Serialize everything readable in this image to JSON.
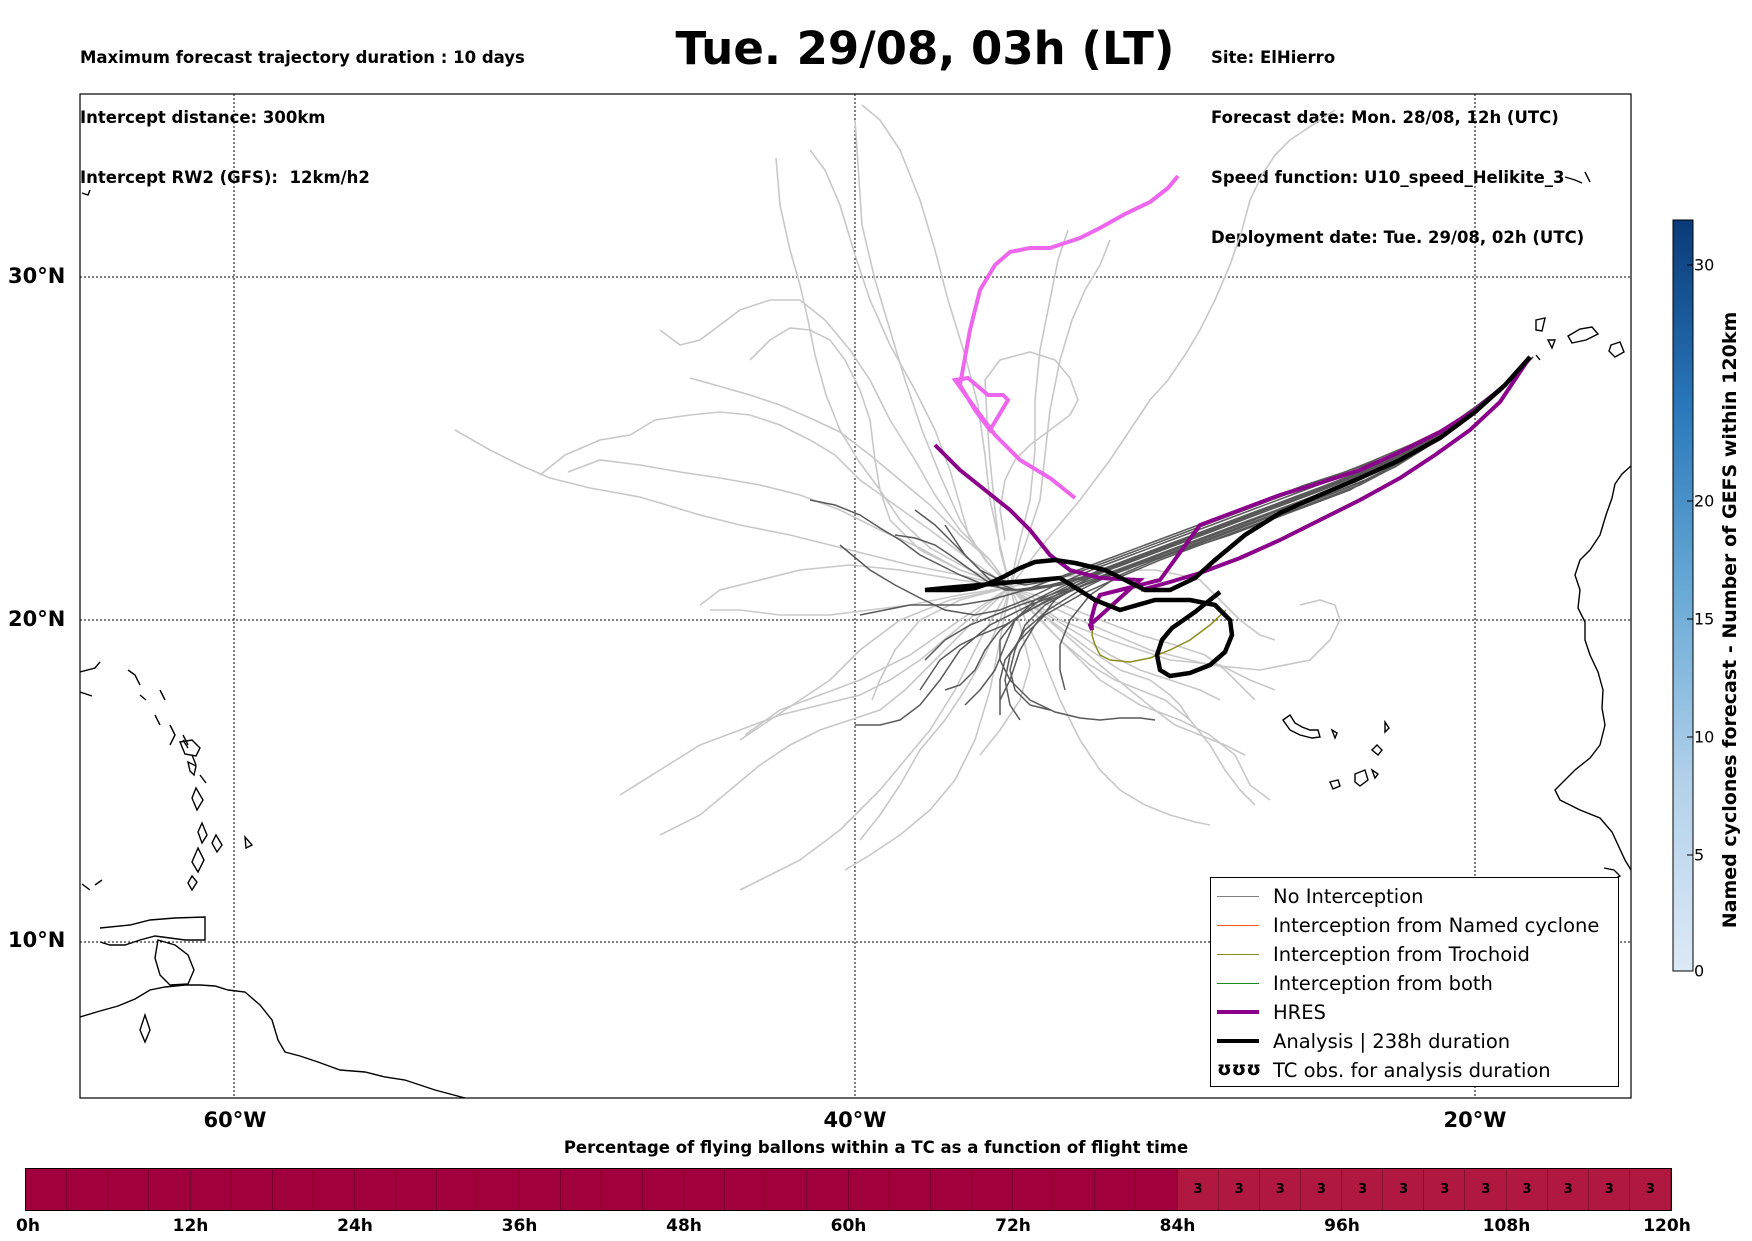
{
  "header": {
    "left_lines": [
      "Maximum forecast trajectory duration : 10 days",
      "Intercept distance: 300km",
      "Intercept RW2 (GFS):  12km/h2"
    ],
    "title": "Tue. 29/08, 03h (LT)",
    "right_lines": [
      "Site: ElHierro",
      "Forecast date: Mon. 28/08, 12h (UTC)",
      "Speed function: U10_speed_Helikite_3",
      "Deployment date: Tue. 29/08, 02h (UTC)"
    ]
  },
  "map": {
    "lat_labels": [
      "30°N",
      "20°N",
      "10°N"
    ],
    "lon_labels": [
      "60°W",
      "40°W",
      "20°W"
    ]
  },
  "legend": {
    "items": [
      {
        "label": "No Interception",
        "color": "#808080",
        "style": "thin"
      },
      {
        "label": "Interception from Named cyclone",
        "color": "#ff5a1e",
        "style": "thin"
      },
      {
        "label": "Interception from Trochoid",
        "color": "#8b8b1e",
        "style": "thin"
      },
      {
        "label": "Interception from both",
        "color": "#1e8b1e",
        "style": "thin"
      },
      {
        "label": "HRES",
        "color": "#8b008b",
        "style": "thick"
      },
      {
        "label": "Analysis | 238h duration",
        "color": "#000000",
        "style": "thick"
      },
      {
        "label": "TC obs. for analysis duration",
        "color": "#000000",
        "style": "symbol",
        "symbol": "ʊʊʊ"
      }
    ]
  },
  "colorbar": {
    "title": "Named cyclones forecast - Number of GEFS within 120km",
    "ticks": [
      "0",
      "5",
      "10",
      "15",
      "20",
      "30"
    ]
  },
  "time_bar": {
    "title": "Percentage of flying ballons within a TC as a function of flight time",
    "tick_labels": [
      "0h",
      "12h",
      "24h",
      "36h",
      "48h",
      "60h",
      "72h",
      "84h",
      "96h",
      "108h",
      "120h"
    ],
    "cell_values": [
      "3",
      "3",
      "3",
      "3",
      "3",
      "3",
      "3",
      "3",
      "3",
      "3",
      "3",
      "3"
    ],
    "colors": {
      "low": "#a0003c",
      "high": "#b01840"
    }
  },
  "colors": {
    "hres_early": "#ee66ee",
    "hres_late": "#8b008b",
    "analysis": "#000000",
    "ensemble_dark": "#555555",
    "ensemble_light": "#c8c8c8"
  }
}
